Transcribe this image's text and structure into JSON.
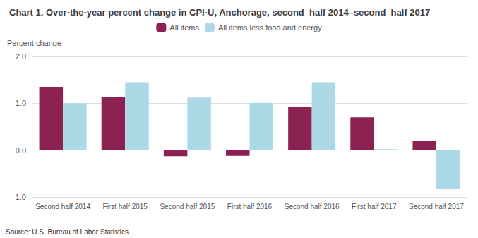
{
  "chart_data": {
    "type": "bar",
    "title": "Chart 1. Over-the-year percent change in CPI-U, Anchorage, second  half 2014–second  half 2017",
    "ylabel": "Percent change",
    "source": "Source: U.S. Bureau of Labor Statistics.",
    "categories": [
      "Second half 2014",
      "First half 2015",
      "Second half 2015",
      "First half 2016",
      "Second half 2016",
      "First half 2017",
      "Second half 2017"
    ],
    "series": [
      {
        "name": "All items",
        "color": "#8B2252",
        "values": [
          1.35,
          1.13,
          -0.13,
          -0.12,
          0.92,
          0.7,
          0.2
        ]
      },
      {
        "name": "All items less food and energy",
        "color": "#ADD8E6",
        "values": [
          1.0,
          1.45,
          1.12,
          1.01,
          1.45,
          0.02,
          -0.82
        ]
      }
    ],
    "ylim": [
      -1.0,
      2.0
    ],
    "yticks": [
      {
        "value": -1.0,
        "label": "-1.0"
      },
      {
        "value": 0.0,
        "label": "0.0"
      },
      {
        "value": 1.0,
        "label": "1.0"
      },
      {
        "value": 2.0,
        "label": "2.0"
      }
    ],
    "grid": true,
    "legend": "top"
  }
}
